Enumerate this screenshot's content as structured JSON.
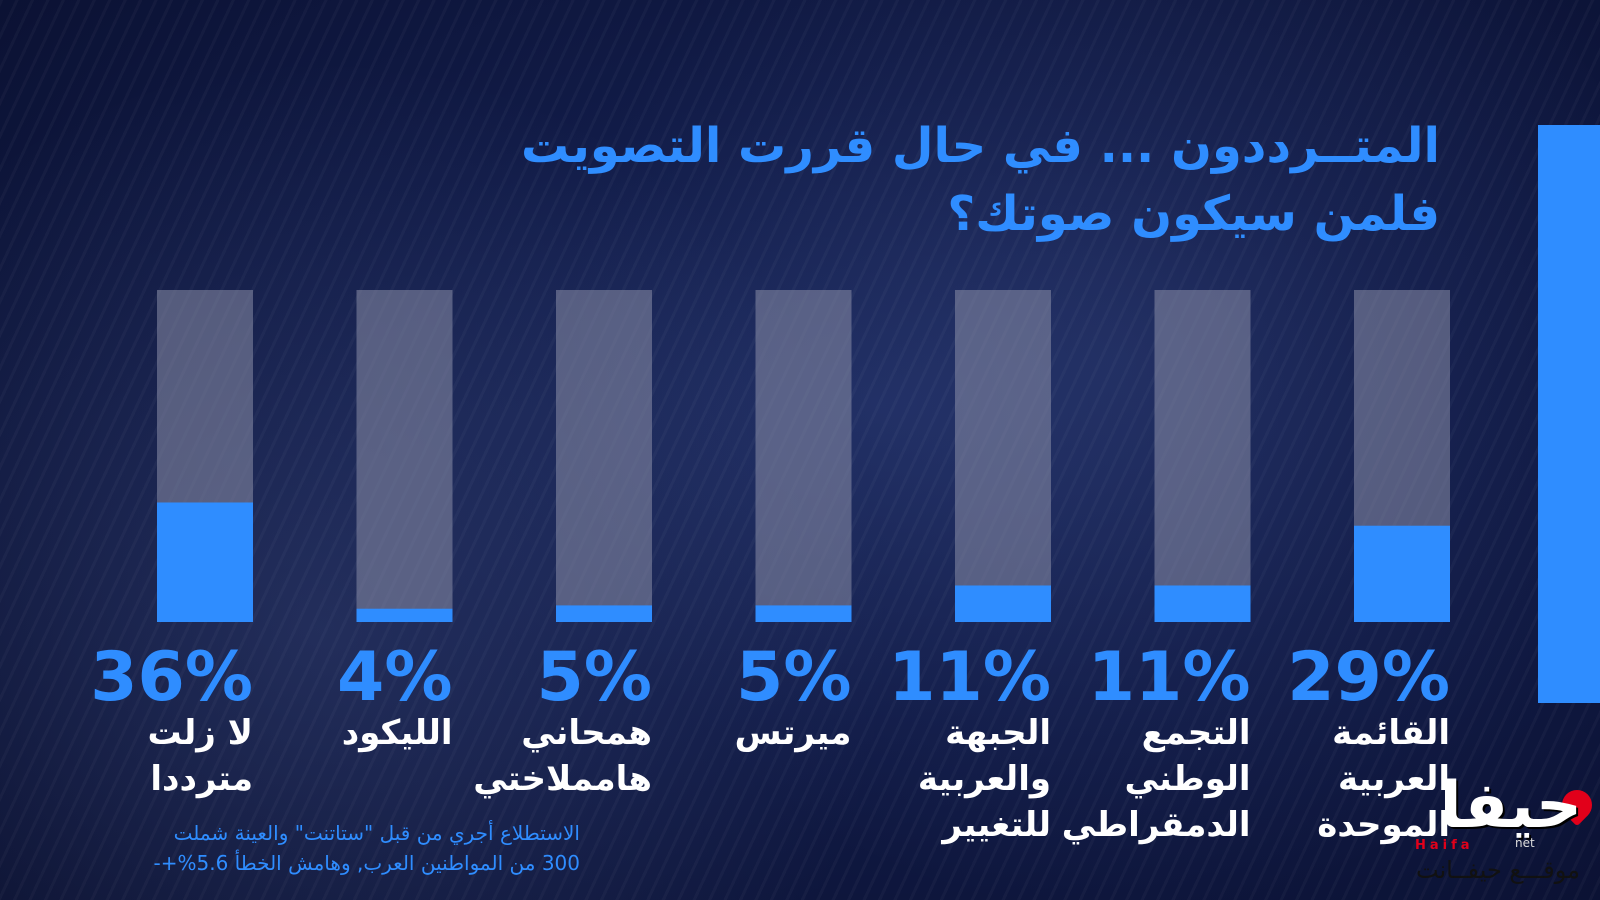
{
  "colors": {
    "accent": "#2f8dff",
    "track": "#8a8ea8",
    "title": "#2f8dff",
    "label": "#ffffff",
    "footnote": "#2f8dff"
  },
  "title": {
    "line1": "المتــرددون ... في حال قررت التصويت",
    "line2": "فلمن سيكون صوتك؟"
  },
  "chart_data": {
    "type": "bar",
    "title": "المتــرددون ... في حال قررت التصويت فلمن سيكون صوتك؟",
    "xlabel": "",
    "ylabel": "",
    "ylim": [
      0,
      100
    ],
    "grid": false,
    "categories": [
      [
        "القائمة",
        "العربية",
        "الموحدة"
      ],
      [
        "التجمع",
        "الوطني",
        "الدمقراطي"
      ],
      [
        "الجبهة",
        "والعربية",
        "للتغيير"
      ],
      [
        "ميرتس"
      ],
      [
        "همحاني",
        "هامملاختي"
      ],
      [
        "الليكود"
      ],
      [
        "لا زلت",
        "مترددا"
      ]
    ],
    "values": [
      29,
      11,
      11,
      5,
      5,
      4,
      36
    ],
    "value_labels": [
      "29%",
      "11%",
      "11%",
      "5%",
      "5%",
      "4%",
      "36%"
    ]
  },
  "footnote": {
    "line1": "الاستطلاع أجري من قبل \"ستاتنت\" والعينة شملت",
    "line2": "300 من المواطنين العرب, وهامش الخطأ 5.6%+-"
  },
  "logo": {
    "main": "حيفا",
    "latin": "Haifa",
    "net": "net",
    "sub": "موقـــع حيفــانت"
  }
}
